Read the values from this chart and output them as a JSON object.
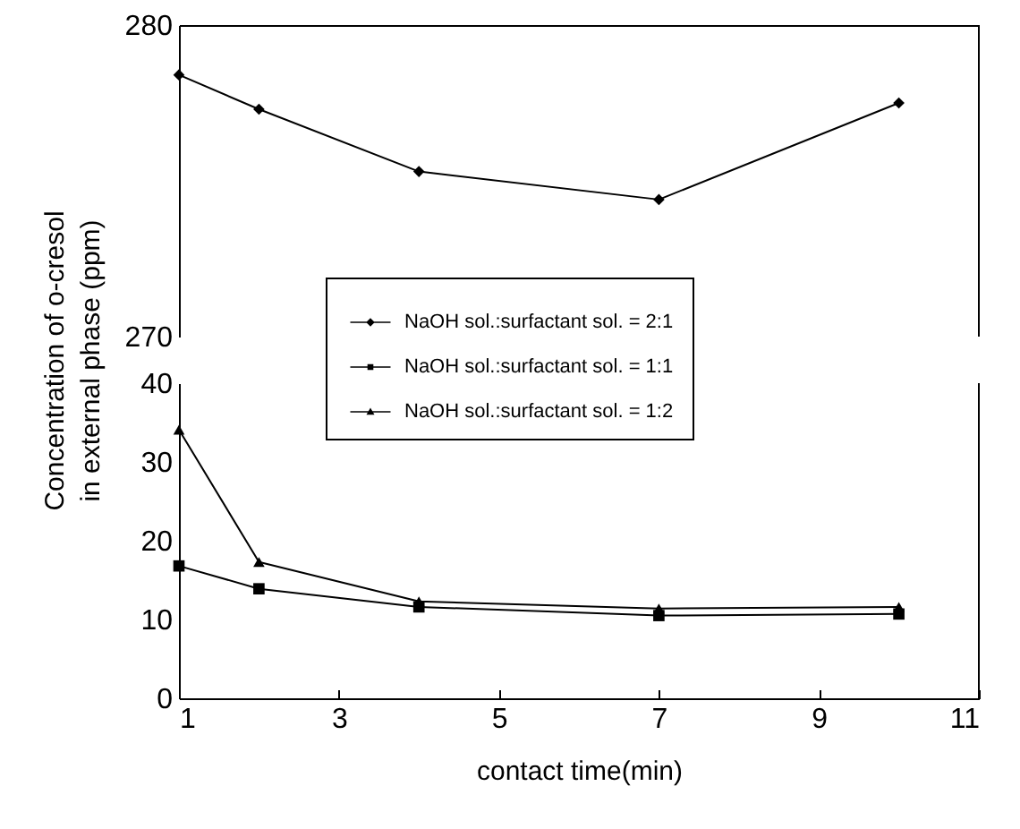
{
  "chart_data": [
    {
      "type": "line",
      "ylabel": "Concentration of o-cresol\nin external phase (ppm)",
      "xlim": [
        1,
        11
      ],
      "ylim": [
        270,
        280
      ],
      "yticks": [
        270,
        280
      ],
      "tick_labels": "y",
      "legend": "bottom",
      "line_style": "solid",
      "series": [
        {
          "name": "NaOH sol.:surfactant sol. = 2:1",
          "color": "#000000",
          "marker": "diamond",
          "x": [
            1,
            2,
            4,
            7,
            10
          ],
          "values": [
            278.4,
            277.3,
            275.3,
            274.4,
            277.5
          ]
        }
      ]
    },
    {
      "type": "line",
      "xlabel": "contact time(min)",
      "xlim": [
        1,
        11
      ],
      "xticks": [
        1,
        3,
        5,
        7,
        9,
        11
      ],
      "ylim": [
        0,
        40
      ],
      "yticks": [
        0,
        10,
        20,
        30,
        40
      ],
      "legend": "top",
      "line_style": "solid",
      "series": [
        {
          "name": "NaOH sol.:surfactant sol. = 1:1",
          "color": "#000000",
          "marker": "square",
          "x": [
            1,
            2,
            4,
            7,
            10
          ],
          "values": [
            16.8,
            13.9,
            11.6,
            10.5,
            10.7
          ]
        },
        {
          "name": "NaOH sol.:surfactant sol. = 1:2",
          "color": "#000000",
          "marker": "triangle",
          "x": [
            1,
            2,
            4,
            7,
            10
          ],
          "values": [
            34.1,
            17.3,
            12.3,
            11.4,
            11.6
          ]
        }
      ]
    }
  ]
}
